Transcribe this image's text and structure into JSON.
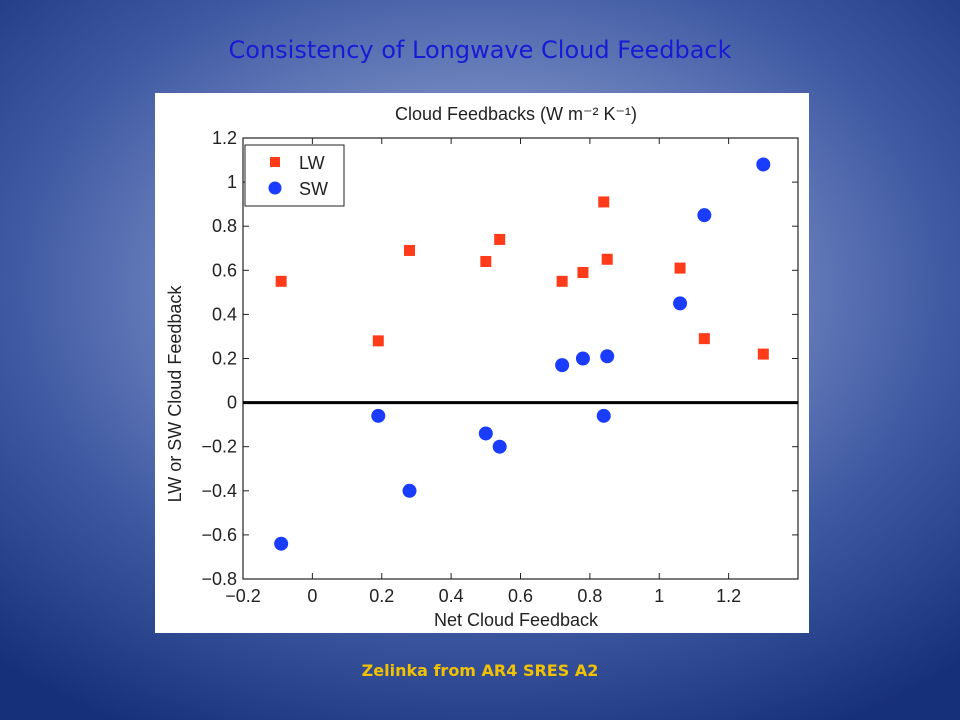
{
  "slide": {
    "title": "Consistency of Longwave Cloud Feedback",
    "caption": "Zelinka from AR4  SRES A2"
  },
  "chart_data": {
    "type": "scatter",
    "title": "Cloud Feedbacks (W m⁻² K⁻¹)",
    "xlabel": "Net Cloud Feedback",
    "ylabel": "LW or SW Cloud Feedback",
    "xlim": [
      -0.2,
      1.4
    ],
    "ylim": [
      -0.8,
      1.2
    ],
    "xticks": [
      -0.2,
      0,
      0.2,
      0.4,
      0.6,
      0.8,
      1,
      1.2
    ],
    "xtick_labels": [
      "−0.2",
      "0",
      "0.2",
      "0.4",
      "0.6",
      "0.8",
      "1",
      "1.2"
    ],
    "yticks": [
      -0.8,
      -0.6,
      -0.4,
      -0.2,
      0,
      0.2,
      0.4,
      0.6,
      0.8,
      1,
      1.2
    ],
    "ytick_labels": [
      "−0.8",
      "−0.6",
      "−0.4",
      "−0.2",
      "0",
      "0.2",
      "0.4",
      "0.6",
      "0.8",
      "1",
      "1.2"
    ],
    "zero_line": true,
    "grid": false,
    "legend_position": "top-left",
    "series": [
      {
        "name": "LW",
        "marker": "square",
        "color": "#ff3b1a",
        "points": [
          {
            "x": -0.09,
            "y": 0.55
          },
          {
            "x": 0.19,
            "y": 0.28
          },
          {
            "x": 0.28,
            "y": 0.69
          },
          {
            "x": 0.5,
            "y": 0.64
          },
          {
            "x": 0.54,
            "y": 0.74
          },
          {
            "x": 0.72,
            "y": 0.55
          },
          {
            "x": 0.78,
            "y": 0.59
          },
          {
            "x": 0.84,
            "y": 0.91
          },
          {
            "x": 0.85,
            "y": 0.65
          },
          {
            "x": 1.06,
            "y": 0.61
          },
          {
            "x": 1.13,
            "y": 0.29
          },
          {
            "x": 1.3,
            "y": 0.22
          }
        ]
      },
      {
        "name": "SW",
        "marker": "circle",
        "color": "#1a3cff",
        "points": [
          {
            "x": -0.09,
            "y": -0.64
          },
          {
            "x": 0.19,
            "y": -0.06
          },
          {
            "x": 0.28,
            "y": -0.4
          },
          {
            "x": 0.5,
            "y": -0.14
          },
          {
            "x": 0.54,
            "y": -0.2
          },
          {
            "x": 0.72,
            "y": 0.17
          },
          {
            "x": 0.78,
            "y": 0.2
          },
          {
            "x": 0.84,
            "y": -0.06
          },
          {
            "x": 0.85,
            "y": 0.21
          },
          {
            "x": 1.06,
            "y": 0.45
          },
          {
            "x": 1.13,
            "y": 0.85
          },
          {
            "x": 1.3,
            "y": 1.08
          }
        ]
      }
    ]
  }
}
